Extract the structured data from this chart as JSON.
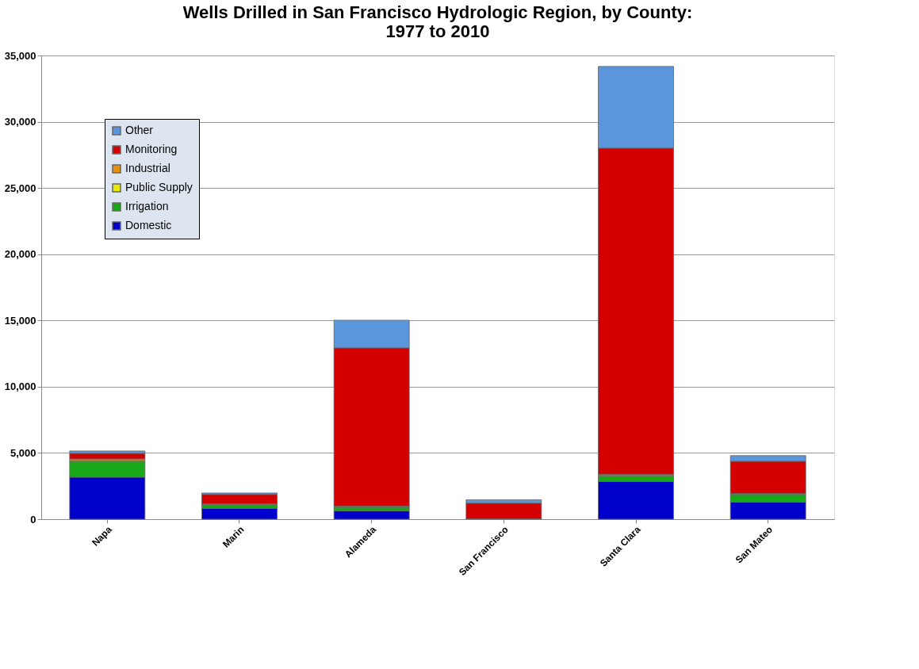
{
  "chart_data": {
    "type": "bar",
    "stacked": true,
    "title": "Wells Drilled in San Francisco Hydrologic Region, by County:\n1977 to 2010",
    "categories": [
      "Napa",
      "Marin",
      "Alameda",
      "San Francisco",
      "Santa Clara",
      "San Mateo"
    ],
    "series": [
      {
        "name": "Domestic",
        "color": "#0000cc",
        "values": [
          3170,
          820,
          620,
          30,
          2840,
          1280
        ]
      },
      {
        "name": "Irrigation",
        "color": "#18a818",
        "values": [
          1200,
          270,
          280,
          0,
          430,
          580
        ]
      },
      {
        "name": "Public Supply",
        "color": "#e8e800",
        "values": [
          60,
          40,
          40,
          0,
          60,
          30
        ]
      },
      {
        "name": "Industrial",
        "color": "#e8900c",
        "values": [
          120,
          40,
          40,
          0,
          60,
          50
        ]
      },
      {
        "name": "Monitoring",
        "color": "#d40000",
        "values": [
          420,
          700,
          11950,
          1180,
          24620,
          2430
        ]
      },
      {
        "name": "Other",
        "color": "#5b96dc",
        "values": [
          180,
          110,
          2090,
          260,
          6160,
          430
        ]
      }
    ],
    "ylim": [
      0,
      35000
    ],
    "yticks": [
      0,
      {
        "value": 5000,
        "label": "5,000"
      },
      {
        "value": 10000,
        "label": "10,000"
      },
      {
        "value": 15000,
        "label": "15,000"
      },
      {
        "value": 20000,
        "label": "20,000"
      },
      {
        "value": 25000,
        "label": "25,000"
      },
      {
        "value": 30000,
        "label": "30,000"
      },
      {
        "value": 35000,
        "label": "35,000"
      }
    ],
    "grid": "y",
    "legend": "top left"
  }
}
